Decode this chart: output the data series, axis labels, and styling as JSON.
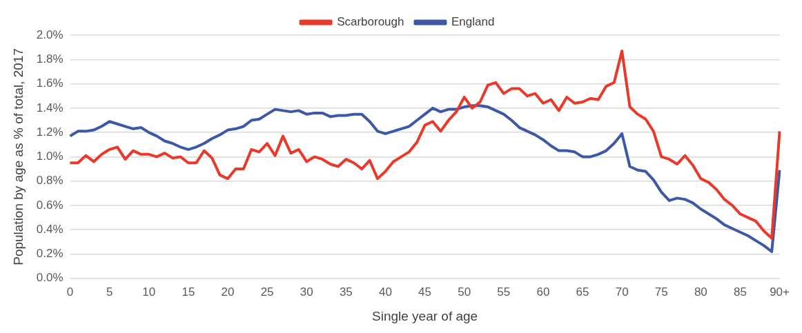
{
  "chart_data": {
    "type": "line",
    "xlabel": "Single year of age",
    "ylabel": "Population by age as % of total, 2017",
    "categories": [
      "0",
      null,
      null,
      null,
      null,
      "5",
      null,
      null,
      null,
      null,
      "10",
      null,
      null,
      null,
      null,
      "15",
      null,
      null,
      null,
      null,
      "20",
      null,
      null,
      null,
      null,
      "25",
      null,
      null,
      null,
      null,
      "30",
      null,
      null,
      null,
      null,
      "35",
      null,
      null,
      null,
      null,
      "40",
      null,
      null,
      null,
      null,
      "45",
      null,
      null,
      null,
      null,
      "50",
      null,
      null,
      null,
      null,
      "55",
      null,
      null,
      null,
      null,
      "60",
      null,
      null,
      null,
      null,
      "65",
      null,
      null,
      null,
      null,
      "70",
      null,
      null,
      null,
      null,
      "75",
      null,
      null,
      null,
      null,
      "80",
      null,
      null,
      null,
      null,
      "85",
      null,
      null,
      null,
      null,
      "90+"
    ],
    "series": [
      {
        "name": "Scarborough",
        "color": "#e8392a",
        "values": [
          0.95,
          0.95,
          1.01,
          0.96,
          1.02,
          1.06,
          1.08,
          0.98,
          1.05,
          1.02,
          1.02,
          1.0,
          1.03,
          0.99,
          1.0,
          0.95,
          0.95,
          1.05,
          0.99,
          0.85,
          0.82,
          0.9,
          0.9,
          1.06,
          1.04,
          1.11,
          1.01,
          1.17,
          1.03,
          1.06,
          0.96,
          1.0,
          0.98,
          0.94,
          0.92,
          0.98,
          0.95,
          0.9,
          0.97,
          0.82,
          0.88,
          0.96,
          1.0,
          1.04,
          1.12,
          1.26,
          1.29,
          1.21,
          1.3,
          1.37,
          1.49,
          1.4,
          1.45,
          1.59,
          1.61,
          1.52,
          1.56,
          1.56,
          1.5,
          1.52,
          1.44,
          1.47,
          1.38,
          1.49,
          1.44,
          1.45,
          1.48,
          1.47,
          1.58,
          1.61,
          1.87,
          1.41,
          1.35,
          1.31,
          1.21,
          1.0,
          0.98,
          0.94,
          1.01,
          0.93,
          0.82,
          0.79,
          0.73,
          0.65,
          0.6,
          0.53,
          0.5,
          0.47,
          0.39,
          0.33,
          1.21
        ]
      },
      {
        "name": "England",
        "color": "#3d58a6",
        "values": [
          1.17,
          1.21,
          1.21,
          1.22,
          1.25,
          1.29,
          1.27,
          1.25,
          1.23,
          1.24,
          1.2,
          1.17,
          1.13,
          1.11,
          1.08,
          1.06,
          1.08,
          1.11,
          1.15,
          1.18,
          1.22,
          1.23,
          1.25,
          1.3,
          1.31,
          1.35,
          1.39,
          1.38,
          1.37,
          1.38,
          1.35,
          1.36,
          1.36,
          1.33,
          1.34,
          1.34,
          1.35,
          1.35,
          1.29,
          1.21,
          1.19,
          1.21,
          1.23,
          1.25,
          1.3,
          1.35,
          1.4,
          1.37,
          1.39,
          1.39,
          1.41,
          1.42,
          1.42,
          1.41,
          1.38,
          1.35,
          1.3,
          1.24,
          1.21,
          1.18,
          1.14,
          1.09,
          1.05,
          1.05,
          1.04,
          1.0,
          1.0,
          1.02,
          1.05,
          1.11,
          1.19,
          0.92,
          0.89,
          0.88,
          0.81,
          0.71,
          0.64,
          0.66,
          0.65,
          0.62,
          0.57,
          0.53,
          0.49,
          0.44,
          0.41,
          0.38,
          0.35,
          0.31,
          0.27,
          0.22,
          0.89
        ]
      }
    ],
    "ylim": [
      0,
      2
    ],
    "yticks": [
      {
        "value": 0,
        "label": "0.0%"
      },
      {
        "value": 0.2,
        "label": "0.2%"
      },
      {
        "value": 0.4,
        "label": "0.4%"
      },
      {
        "value": 0.6,
        "label": "0.6%"
      },
      {
        "value": 0.8,
        "label": "0.8%"
      },
      {
        "value": 1.0,
        "label": "1.0%"
      },
      {
        "value": 1.2,
        "label": "1.2%"
      },
      {
        "value": 1.4,
        "label": "1.4%"
      },
      {
        "value": 1.6,
        "label": "1.6%"
      },
      {
        "value": 1.8,
        "label": "1.8%"
      },
      {
        "value": 2.0,
        "label": "2.0%"
      }
    ],
    "grid": "y",
    "legend": "top",
    "marker": "none",
    "line_style": "solid"
  }
}
